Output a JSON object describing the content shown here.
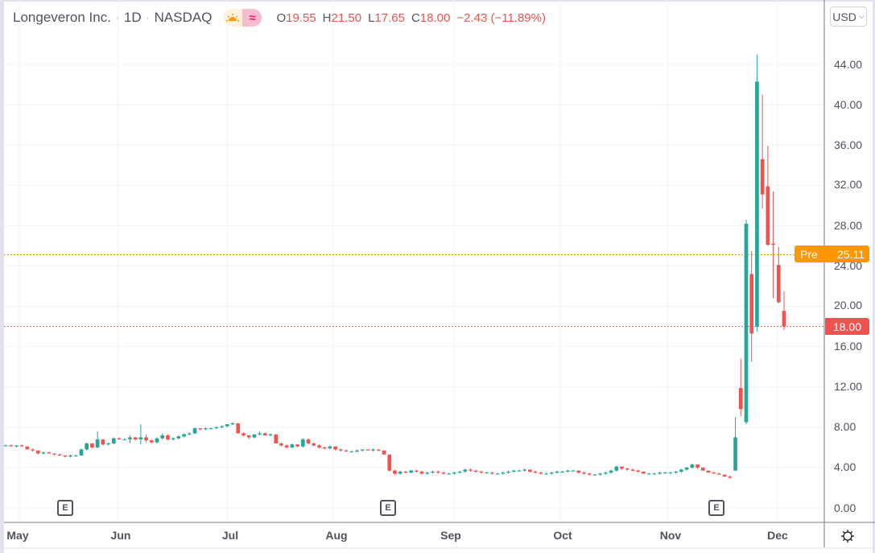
{
  "header": {
    "symbol_name": "Longeveron Inc.",
    "interval": "1D",
    "exchange": "NASDAQ",
    "separator": "·",
    "market_status_icons": [
      "sun-icon",
      "wave-icon"
    ],
    "ohlc": {
      "open_key": "O",
      "open": "19.55",
      "high_key": "H",
      "high": "21.50",
      "low_key": "L",
      "low": "17.65",
      "close_key": "C",
      "close": "18.00",
      "change": "−2.43 (−11.89%)"
    }
  },
  "currency_button": {
    "label": "USD",
    "chevron": "⌄"
  },
  "price_axis": {
    "labels": [
      "44.00",
      "40.00",
      "36.00",
      "32.00",
      "28.00",
      "24.00",
      "20.00",
      "16.00",
      "12.00",
      "8.00",
      "4.00",
      "0.00"
    ]
  },
  "time_axis": {
    "labels": [
      "May",
      "Jun",
      "Jul",
      "Aug",
      "Sep",
      "Oct",
      "Nov",
      "Dec"
    ]
  },
  "price_tags": {
    "pre_label": "Pre",
    "pre_value": "25.11",
    "last_value": "18.00"
  },
  "earnings_markers": [
    "E",
    "E",
    "E"
  ],
  "colors": {
    "up": "#26a69a",
    "down": "#ef5350",
    "pre": "#ff9800",
    "grid": "#f0f3fa",
    "text": "#50535e"
  },
  "chart_data": {
    "type": "candlestick",
    "title": "Longeveron Inc. · 1D · NASDAQ",
    "xlabel": "",
    "ylabel": "USD",
    "ylim": [
      -0.5,
      45
    ],
    "y_ticks": [
      0,
      4,
      8,
      12,
      16,
      20,
      24,
      28,
      32,
      36,
      40,
      44
    ],
    "x_tick_labels": [
      "May",
      "Jun",
      "Jul",
      "Aug",
      "Sep",
      "Oct",
      "Nov",
      "Dec"
    ],
    "grid": true,
    "last_price": 18.0,
    "premarket_price": 25.11,
    "earnings_events": [
      "mid-May",
      "mid-Aug",
      "mid-Nov"
    ],
    "candles_note": "Approximate daily OHLC read from the chart, oldest to newest",
    "candles": [
      [
        6.2,
        6.3,
        6.1,
        6.2
      ],
      [
        6.2,
        6.3,
        6.1,
        6.1
      ],
      [
        6.1,
        6.2,
        6.0,
        6.2
      ],
      [
        6.2,
        6.3,
        6.1,
        6.1
      ],
      [
        6.1,
        6.1,
        5.8,
        5.8
      ],
      [
        5.8,
        5.9,
        5.6,
        5.7
      ],
      [
        5.7,
        5.7,
        5.3,
        5.4
      ],
      [
        5.4,
        5.6,
        5.3,
        5.5
      ],
      [
        5.5,
        5.6,
        5.4,
        5.4
      ],
      [
        5.4,
        5.4,
        5.2,
        5.3
      ],
      [
        5.3,
        5.4,
        5.2,
        5.2
      ],
      [
        5.2,
        5.2,
        5.0,
        5.1
      ],
      [
        5.1,
        5.3,
        5.0,
        5.2
      ],
      [
        5.2,
        5.3,
        5.1,
        5.2
      ],
      [
        5.2,
        5.9,
        5.2,
        5.8
      ],
      [
        5.8,
        6.5,
        5.7,
        6.4
      ],
      [
        6.4,
        6.4,
        5.9,
        6.0
      ],
      [
        6.0,
        7.6,
        5.9,
        6.8
      ],
      [
        6.8,
        6.8,
        6.2,
        6.3
      ],
      [
        6.3,
        6.5,
        6.2,
        6.4
      ],
      [
        6.4,
        7.0,
        6.3,
        6.9
      ],
      [
        6.9,
        7.0,
        6.8,
        6.8
      ],
      [
        6.8,
        6.9,
        6.7,
        6.8
      ],
      [
        6.8,
        7.2,
        6.4,
        7.0
      ],
      [
        7.0,
        7.0,
        6.7,
        6.8
      ],
      [
        6.8,
        8.3,
        6.3,
        7.0
      ],
      [
        7.0,
        7.3,
        6.5,
        6.7
      ],
      [
        6.7,
        6.8,
        6.4,
        6.5
      ],
      [
        6.5,
        7.0,
        6.4,
        6.9
      ],
      [
        6.9,
        7.4,
        6.8,
        7.2
      ],
      [
        7.2,
        7.3,
        6.7,
        6.8
      ],
      [
        6.8,
        7.0,
        6.7,
        6.9
      ],
      [
        6.9,
        7.2,
        6.8,
        7.1
      ],
      [
        7.1,
        7.4,
        7.0,
        7.3
      ],
      [
        7.3,
        7.5,
        7.2,
        7.4
      ],
      [
        7.4,
        8.0,
        7.3,
        7.9
      ],
      [
        7.9,
        7.9,
        7.7,
        7.8
      ],
      [
        7.8,
        8.0,
        7.7,
        7.9
      ],
      [
        7.9,
        8.0,
        7.8,
        7.9
      ],
      [
        7.9,
        8.1,
        7.8,
        8.0
      ],
      [
        8.0,
        8.2,
        7.9,
        8.1
      ],
      [
        8.1,
        8.3,
        8.0,
        8.3
      ],
      [
        8.3,
        8.5,
        8.2,
        8.4
      ],
      [
        8.4,
        8.4,
        7.4,
        7.4
      ],
      [
        7.4,
        7.5,
        7.1,
        7.2
      ],
      [
        7.2,
        7.2,
        6.8,
        7.0
      ],
      [
        7.0,
        7.3,
        6.9,
        7.3
      ],
      [
        7.3,
        7.6,
        7.2,
        7.4
      ],
      [
        7.4,
        7.5,
        7.2,
        7.2
      ],
      [
        7.2,
        7.4,
        7.1,
        7.3
      ],
      [
        7.3,
        7.3,
        6.4,
        6.4
      ],
      [
        6.4,
        6.5,
        6.1,
        6.2
      ],
      [
        6.2,
        6.3,
        5.9,
        6.0
      ],
      [
        6.0,
        6.4,
        5.9,
        6.3
      ],
      [
        6.3,
        6.3,
        6.0,
        6.1
      ],
      [
        6.1,
        6.9,
        6.0,
        6.8
      ],
      [
        6.8,
        6.9,
        6.3,
        6.4
      ],
      [
        6.4,
        6.5,
        6.1,
        6.2
      ],
      [
        6.2,
        6.3,
        5.9,
        6.0
      ],
      [
        6.0,
        6.1,
        5.8,
        5.9
      ],
      [
        5.9,
        6.2,
        5.8,
        6.1
      ],
      [
        6.1,
        6.1,
        5.7,
        5.8
      ],
      [
        5.8,
        5.9,
        5.6,
        5.7
      ],
      [
        5.7,
        5.8,
        5.6,
        5.6
      ],
      [
        5.6,
        5.7,
        5.5,
        5.6
      ],
      [
        5.6,
        5.8,
        5.5,
        5.7
      ],
      [
        5.7,
        5.8,
        5.6,
        5.8
      ],
      [
        5.8,
        5.8,
        5.7,
        5.7
      ],
      [
        5.7,
        5.9,
        5.6,
        5.8
      ],
      [
        5.8,
        5.8,
        5.6,
        5.7
      ],
      [
        5.7,
        5.7,
        5.3,
        5.3
      ],
      [
        5.3,
        5.3,
        3.6,
        3.7
      ],
      [
        3.7,
        3.8,
        3.3,
        3.4
      ],
      [
        3.4,
        3.7,
        3.3,
        3.6
      ],
      [
        3.6,
        3.7,
        3.4,
        3.5
      ],
      [
        3.5,
        3.8,
        3.4,
        3.7
      ],
      [
        3.7,
        3.8,
        3.5,
        3.6
      ],
      [
        3.6,
        3.7,
        3.3,
        3.4
      ],
      [
        3.4,
        3.6,
        3.3,
        3.5
      ],
      [
        3.5,
        3.7,
        3.4,
        3.6
      ],
      [
        3.6,
        3.7,
        3.4,
        3.5
      ],
      [
        3.5,
        3.6,
        3.3,
        3.4
      ],
      [
        3.4,
        3.5,
        3.3,
        3.4
      ],
      [
        3.4,
        3.6,
        3.3,
        3.5
      ],
      [
        3.5,
        3.7,
        3.4,
        3.6
      ],
      [
        3.6,
        3.9,
        3.5,
        3.8
      ],
      [
        3.8,
        3.9,
        3.6,
        3.7
      ],
      [
        3.7,
        3.8,
        3.5,
        3.6
      ],
      [
        3.6,
        3.7,
        3.4,
        3.5
      ],
      [
        3.5,
        3.6,
        3.4,
        3.5
      ],
      [
        3.5,
        3.6,
        3.3,
        3.4
      ],
      [
        3.4,
        3.5,
        3.3,
        3.4
      ],
      [
        3.4,
        3.6,
        3.3,
        3.5
      ],
      [
        3.5,
        3.7,
        3.4,
        3.6
      ],
      [
        3.6,
        3.8,
        3.5,
        3.7
      ],
      [
        3.7,
        3.8,
        3.6,
        3.7
      ],
      [
        3.7,
        3.9,
        3.6,
        3.8
      ],
      [
        3.8,
        3.8,
        3.5,
        3.6
      ],
      [
        3.6,
        3.7,
        3.4,
        3.5
      ],
      [
        3.5,
        3.6,
        3.3,
        3.4
      ],
      [
        3.4,
        3.5,
        3.3,
        3.4
      ],
      [
        3.4,
        3.6,
        3.3,
        3.5
      ],
      [
        3.5,
        3.7,
        3.4,
        3.6
      ],
      [
        3.6,
        3.7,
        3.5,
        3.6
      ],
      [
        3.6,
        3.8,
        3.5,
        3.7
      ],
      [
        3.7,
        3.8,
        3.6,
        3.7
      ],
      [
        3.7,
        3.7,
        3.4,
        3.5
      ],
      [
        3.5,
        3.6,
        3.3,
        3.4
      ],
      [
        3.4,
        3.5,
        3.2,
        3.3
      ],
      [
        3.3,
        3.4,
        3.2,
        3.3
      ],
      [
        3.3,
        3.5,
        3.2,
        3.4
      ],
      [
        3.4,
        3.6,
        3.3,
        3.5
      ],
      [
        3.5,
        3.8,
        3.4,
        3.7
      ],
      [
        3.7,
        4.2,
        3.6,
        4.1
      ],
      [
        4.1,
        4.1,
        3.8,
        3.9
      ],
      [
        3.9,
        4.0,
        3.7,
        3.8
      ],
      [
        3.8,
        3.9,
        3.6,
        3.7
      ],
      [
        3.7,
        3.8,
        3.5,
        3.6
      ],
      [
        3.6,
        3.6,
        3.4,
        3.4
      ],
      [
        3.4,
        3.5,
        3.3,
        3.4
      ],
      [
        3.4,
        3.5,
        3.3,
        3.4
      ],
      [
        3.4,
        3.6,
        3.3,
        3.5
      ],
      [
        3.5,
        3.6,
        3.4,
        3.5
      ],
      [
        3.5,
        3.6,
        3.4,
        3.5
      ],
      [
        3.5,
        3.7,
        3.4,
        3.6
      ],
      [
        3.6,
        3.9,
        3.5,
        3.8
      ],
      [
        3.8,
        4.1,
        3.7,
        4.0
      ],
      [
        4.0,
        4.4,
        3.9,
        4.3
      ],
      [
        4.3,
        4.3,
        3.9,
        4.0
      ],
      [
        4.0,
        4.0,
        3.7,
        3.7
      ],
      [
        3.7,
        3.7,
        3.5,
        3.5
      ],
      [
        3.5,
        3.6,
        3.4,
        3.4
      ],
      [
        3.4,
        3.5,
        3.3,
        3.3
      ],
      [
        3.3,
        3.3,
        3.1,
        3.1
      ],
      [
        3.1,
        3.2,
        2.9,
        3.0
      ],
      [
        3.7,
        9.0,
        3.7,
        7.0
      ],
      [
        11.9,
        14.8,
        9.1,
        9.8
      ],
      [
        8.5,
        28.6,
        8.3,
        28.2
      ],
      [
        23.2,
        25.5,
        14.5,
        17.3
      ],
      [
        18.0,
        45.0,
        17.5,
        42.3
      ],
      [
        34.6,
        41.0,
        29.7,
        31.1
      ],
      [
        31.9,
        35.9,
        26.0,
        26.1
      ],
      [
        26.2,
        31.4,
        20.8,
        26.1
      ],
      [
        24.1,
        25.9,
        20.3,
        20.4
      ],
      [
        19.55,
        21.5,
        17.65,
        18.0
      ]
    ]
  }
}
